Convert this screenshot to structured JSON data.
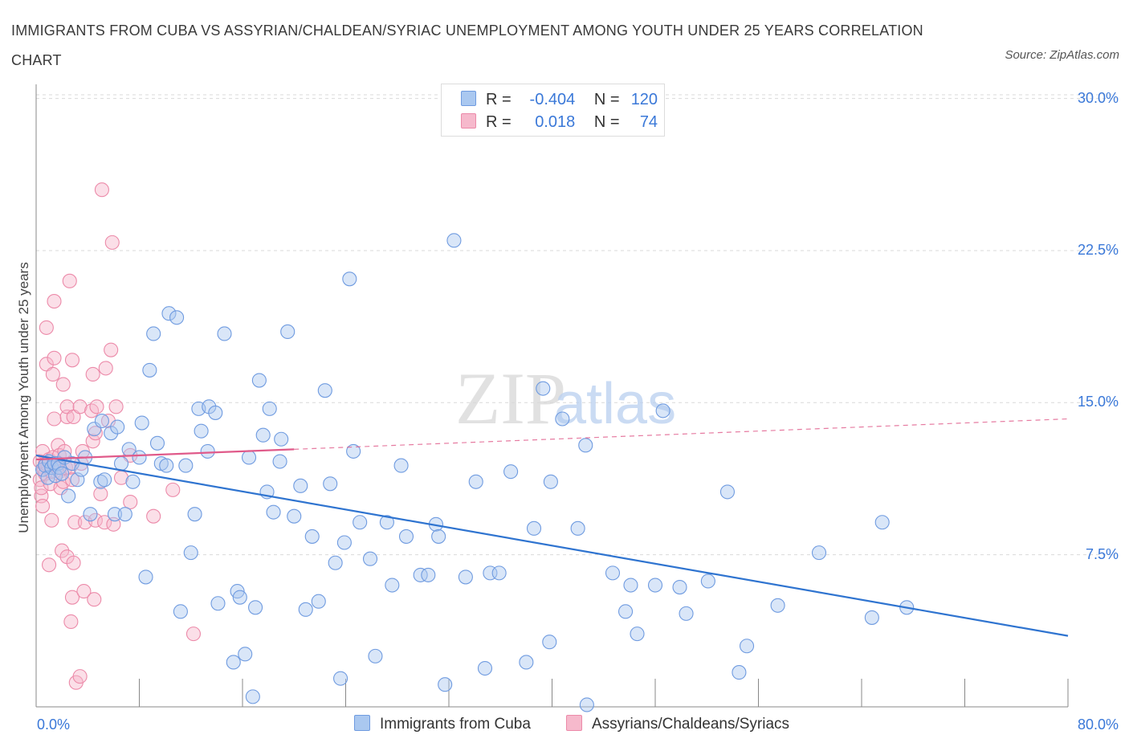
{
  "header": {
    "title": "IMMIGRANTS FROM CUBA VS ASSYRIAN/CHALDEAN/SYRIAC UNEMPLOYMENT AMONG YOUTH UNDER 25 YEARS CORRELATION CHART",
    "source": "Source: ZipAtlas.com"
  },
  "legend": {
    "r_label": "R =",
    "n_label": "N =",
    "cuba": {
      "r": "-0.404",
      "n": "120"
    },
    "assyrian": {
      "r": "0.018",
      "n": "74"
    }
  },
  "watermark": {
    "zip": "ZIP",
    "atlas": "atlas"
  },
  "colors": {
    "cuba_fill": "#aac8f0",
    "cuba_stroke": "#6f9be0",
    "cuba_line": "#2f74d0",
    "assyrian_fill": "#f6b9cc",
    "assyrian_stroke": "#ec8aa9",
    "assyrian_line": "#e05a8a",
    "axis_text": "#3a78d8",
    "grid": "#d9d9d9"
  },
  "chart_data": {
    "type": "scatter",
    "title": "IMMIGRANTS FROM CUBA VS ASSYRIAN/CHALDEAN/SYRIAC UNEMPLOYMENT AMONG YOUTH UNDER 25 YEARS CORRELATION CHART",
    "xlabel": "",
    "ylabel": "Unemployment Among Youth under 25 years",
    "xlim": [
      0,
      80
    ],
    "ylim": [
      0,
      30.5
    ],
    "x_tick_labels": {
      "min": "0.0%",
      "max": "80.0%"
    },
    "y_ticks": [
      {
        "value": 7.5,
        "label": "7.5%"
      },
      {
        "value": 15.0,
        "label": "15.0%"
      },
      {
        "value": 22.5,
        "label": "22.5%"
      },
      {
        "value": 30.0,
        "label": "30.0%"
      }
    ],
    "grid": true,
    "legend_position": "top-center",
    "series": [
      {
        "name": "Immigrants from Cuba",
        "r": -0.404,
        "n": 120,
        "trend": {
          "x": [
            0,
            80
          ],
          "y": [
            12.4,
            3.5
          ]
        },
        "points": [
          [
            0.5,
            11.7
          ],
          [
            0.7,
            11.9
          ],
          [
            0.9,
            11.3
          ],
          [
            1.0,
            12.1
          ],
          [
            1.2,
            11.8
          ],
          [
            1.4,
            12.0
          ],
          [
            1.5,
            11.4
          ],
          [
            1.7,
            12.0
          ],
          [
            1.8,
            11.8
          ],
          [
            2.0,
            11.5
          ],
          [
            2.2,
            12.3
          ],
          [
            2.5,
            10.4
          ],
          [
            2.8,
            12.0
          ],
          [
            3.2,
            11.2
          ],
          [
            3.5,
            11.7
          ],
          [
            3.8,
            12.3
          ],
          [
            4.2,
            9.5
          ],
          [
            4.5,
            13.7
          ],
          [
            5.0,
            11.1
          ],
          [
            5.1,
            14.1
          ],
          [
            5.3,
            11.2
          ],
          [
            5.8,
            13.5
          ],
          [
            6.1,
            9.5
          ],
          [
            6.3,
            13.8
          ],
          [
            6.6,
            12.0
          ],
          [
            6.9,
            9.5
          ],
          [
            7.2,
            12.7
          ],
          [
            7.5,
            11.1
          ],
          [
            8.0,
            12.3
          ],
          [
            8.2,
            14.0
          ],
          [
            8.5,
            6.4
          ],
          [
            8.8,
            16.6
          ],
          [
            9.1,
            18.4
          ],
          [
            9.4,
            13.0
          ],
          [
            9.7,
            12.0
          ],
          [
            10.1,
            11.9
          ],
          [
            10.3,
            19.4
          ],
          [
            10.9,
            19.2
          ],
          [
            11.2,
            4.7
          ],
          [
            11.6,
            11.9
          ],
          [
            12.0,
            7.6
          ],
          [
            12.3,
            9.5
          ],
          [
            12.6,
            14.7
          ],
          [
            12.8,
            13.6
          ],
          [
            13.3,
            12.6
          ],
          [
            13.4,
            14.8
          ],
          [
            13.9,
            14.5
          ],
          [
            14.1,
            5.1
          ],
          [
            14.6,
            18.4
          ],
          [
            15.3,
            2.2
          ],
          [
            15.6,
            5.7
          ],
          [
            15.8,
            5.4
          ],
          [
            16.2,
            2.6
          ],
          [
            16.5,
            12.3
          ],
          [
            16.8,
            0.5
          ],
          [
            17.0,
            4.9
          ],
          [
            17.3,
            16.1
          ],
          [
            17.6,
            13.4
          ],
          [
            17.9,
            10.6
          ],
          [
            18.1,
            14.7
          ],
          [
            18.4,
            9.6
          ],
          [
            18.9,
            12.1
          ],
          [
            19.0,
            13.2
          ],
          [
            19.5,
            18.5
          ],
          [
            20.0,
            9.4
          ],
          [
            20.5,
            10.9
          ],
          [
            20.9,
            4.8
          ],
          [
            21.4,
            8.4
          ],
          [
            21.9,
            5.2
          ],
          [
            22.4,
            15.6
          ],
          [
            22.8,
            11.0
          ],
          [
            23.2,
            7.1
          ],
          [
            23.6,
            1.4
          ],
          [
            23.9,
            8.1
          ],
          [
            24.3,
            21.1
          ],
          [
            24.6,
            12.6
          ],
          [
            25.1,
            9.1
          ],
          [
            25.9,
            7.3
          ],
          [
            26.3,
            2.5
          ],
          [
            27.2,
            9.1
          ],
          [
            27.6,
            6.0
          ],
          [
            28.3,
            11.9
          ],
          [
            28.7,
            8.4
          ],
          [
            29.8,
            6.5
          ],
          [
            30.4,
            6.5
          ],
          [
            31.0,
            9.0
          ],
          [
            31.2,
            8.4
          ],
          [
            31.7,
            1.1
          ],
          [
            32.4,
            23.0
          ],
          [
            33.3,
            6.4
          ],
          [
            34.1,
            11.1
          ],
          [
            34.8,
            1.9
          ],
          [
            35.2,
            6.6
          ],
          [
            35.9,
            6.6
          ],
          [
            36.8,
            11.6
          ],
          [
            38.0,
            2.2
          ],
          [
            38.6,
            8.8
          ],
          [
            39.3,
            15.7
          ],
          [
            39.8,
            3.2
          ],
          [
            39.9,
            11.1
          ],
          [
            40.8,
            14.2
          ],
          [
            42.0,
            8.8
          ],
          [
            42.6,
            12.9
          ],
          [
            42.7,
            0.1
          ],
          [
            44.7,
            6.6
          ],
          [
            45.7,
            4.7
          ],
          [
            46.1,
            6.0
          ],
          [
            46.6,
            3.6
          ],
          [
            48.0,
            6.0
          ],
          [
            48.6,
            14.6
          ],
          [
            49.9,
            5.9
          ],
          [
            50.4,
            4.6
          ],
          [
            52.1,
            6.2
          ],
          [
            53.6,
            10.6
          ],
          [
            54.5,
            1.7
          ],
          [
            55.1,
            3.0
          ],
          [
            57.5,
            5.0
          ],
          [
            60.7,
            7.6
          ],
          [
            64.8,
            4.4
          ],
          [
            65.6,
            9.1
          ],
          [
            67.5,
            4.9
          ]
        ]
      },
      {
        "name": "Assyrians/Chaldeans/Syriacs",
        "r": 0.018,
        "n": 74,
        "trend": {
          "x": [
            0,
            20
          ],
          "y": [
            12.2,
            12.7
          ]
        },
        "trend_extended": {
          "x": [
            20,
            80
          ],
          "y": [
            12.7,
            14.2
          ]
        },
        "points": [
          [
            0.3,
            12.1
          ],
          [
            0.3,
            11.2
          ],
          [
            0.4,
            10.4
          ],
          [
            0.4,
            10.8
          ],
          [
            0.5,
            12.6
          ],
          [
            0.5,
            9.9
          ],
          [
            0.6,
            11.7
          ],
          [
            0.7,
            12.0
          ],
          [
            0.7,
            11.5
          ],
          [
            0.8,
            16.9
          ],
          [
            0.8,
            18.7
          ],
          [
            0.9,
            11.9
          ],
          [
            1.0,
            7.0
          ],
          [
            1.0,
            12.2
          ],
          [
            1.1,
            11.0
          ],
          [
            1.2,
            9.2
          ],
          [
            1.2,
            11.6
          ],
          [
            1.3,
            12.3
          ],
          [
            1.3,
            16.4
          ],
          [
            1.4,
            17.2
          ],
          [
            1.4,
            14.2
          ],
          [
            1.4,
            20.0
          ],
          [
            1.5,
            12.0
          ],
          [
            1.6,
            11.8
          ],
          [
            1.7,
            12.9
          ],
          [
            1.8,
            12.4
          ],
          [
            1.8,
            11.6
          ],
          [
            1.9,
            10.8
          ],
          [
            2.0,
            7.7
          ],
          [
            2.1,
            11.1
          ],
          [
            2.1,
            15.9
          ],
          [
            2.2,
            12.6
          ],
          [
            2.3,
            11.8
          ],
          [
            2.4,
            7.4
          ],
          [
            2.4,
            14.3
          ],
          [
            2.4,
            14.8
          ],
          [
            2.6,
            21.0
          ],
          [
            2.6,
            11.8
          ],
          [
            2.7,
            4.2
          ],
          [
            2.8,
            11.2
          ],
          [
            2.8,
            5.4
          ],
          [
            2.8,
            17.1
          ],
          [
            2.9,
            14.3
          ],
          [
            2.9,
            7.1
          ],
          [
            3.0,
            9.1
          ],
          [
            3.1,
            1.2
          ],
          [
            3.4,
            14.8
          ],
          [
            3.4,
            1.5
          ],
          [
            3.5,
            12.0
          ],
          [
            3.6,
            12.6
          ],
          [
            3.7,
            5.7
          ],
          [
            3.8,
            9.1
          ],
          [
            4.3,
            14.6
          ],
          [
            4.4,
            16.4
          ],
          [
            4.4,
            13.1
          ],
          [
            4.5,
            5.3
          ],
          [
            4.6,
            9.2
          ],
          [
            4.6,
            13.5
          ],
          [
            4.7,
            14.8
          ],
          [
            5.0,
            10.5
          ],
          [
            5.1,
            25.5
          ],
          [
            5.3,
            9.1
          ],
          [
            5.4,
            16.7
          ],
          [
            5.6,
            14.1
          ],
          [
            5.8,
            17.6
          ],
          [
            5.9,
            22.9
          ],
          [
            6.0,
            9.0
          ],
          [
            6.2,
            14.8
          ],
          [
            6.6,
            11.3
          ],
          [
            7.3,
            12.4
          ],
          [
            7.3,
            10.1
          ],
          [
            9.1,
            9.4
          ],
          [
            10.6,
            10.7
          ],
          [
            12.2,
            3.6
          ]
        ]
      }
    ]
  },
  "bottom_legend": {
    "cuba_label": "Immigrants from Cuba",
    "assyrian_label": "Assyrians/Chaldeans/Syriacs"
  }
}
